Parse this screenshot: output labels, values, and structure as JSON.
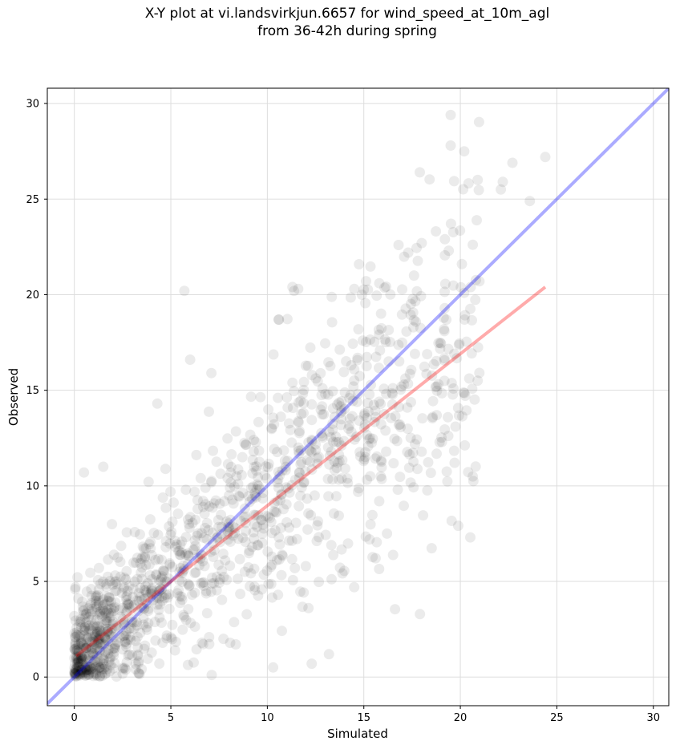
{
  "chart_data": {
    "type": "scatter",
    "title_line1": "X-Y plot at vi.landsvirkjun.6657 for wind_speed_at_10m_agl",
    "title_line2": "from 36-42h during spring",
    "xlabel": "Simulated",
    "ylabel": "Observed",
    "xlim": [
      -1.4,
      30.8
    ],
    "ylim": [
      -1.5,
      30.8
    ],
    "xticks": [
      0,
      5,
      10,
      15,
      20,
      25,
      30
    ],
    "yticks": [
      0,
      5,
      10,
      15,
      20,
      25,
      30
    ],
    "grid": true,
    "colors": {
      "points": "#000000",
      "identity_line": "#0000ff",
      "fit_line": "#ff0000"
    },
    "identity_line": {
      "name": "",
      "x": [
        -1.4,
        30.8
      ],
      "y": [
        -1.4,
        30.8
      ]
    },
    "fit_line": {
      "name": "",
      "x": [
        0.1,
        24.4
      ],
      "y": [
        1.1,
        20.4
      ]
    },
    "highlighted_points": [
      {
        "x": 19.5,
        "y": 29.4
      },
      {
        "x": 19.5,
        "y": 27.8
      },
      {
        "x": 20.2,
        "y": 27.5
      },
      {
        "x": 24.4,
        "y": 27.2
      },
      {
        "x": 22.7,
        "y": 26.9
      },
      {
        "x": 17.9,
        "y": 26.4
      },
      {
        "x": 20.9,
        "y": 26.0
      },
      {
        "x": 22.2,
        "y": 25.9
      },
      {
        "x": 22.1,
        "y": 25.5
      },
      {
        "x": 23.6,
        "y": 24.9
      },
      {
        "x": 19.2,
        "y": 22.9
      },
      {
        "x": 16.8,
        "y": 22.6
      },
      {
        "x": 18.0,
        "y": 22.7
      },
      {
        "x": 19.4,
        "y": 22.3
      },
      {
        "x": 17.3,
        "y": 22.2
      },
      {
        "x": 17.6,
        "y": 21.0
      },
      {
        "x": 15.8,
        "y": 20.6
      },
      {
        "x": 11.3,
        "y": 20.4
      },
      {
        "x": 5.7,
        "y": 20.2
      },
      {
        "x": 11.6,
        "y": 20.3
      },
      {
        "x": 14.9,
        "y": 20.0
      },
      {
        "x": 20.9,
        "y": 15.5
      },
      {
        "x": 16.2,
        "y": 7.5
      },
      {
        "x": 15.3,
        "y": 7.2
      },
      {
        "x": 14.5,
        "y": 4.7
      },
      {
        "x": 12.3,
        "y": 0.7
      },
      {
        "x": 10.3,
        "y": 0.5
      },
      {
        "x": 6.0,
        "y": 16.6
      },
      {
        "x": 7.1,
        "y": 15.9
      },
      {
        "x": 10.6,
        "y": 18.7
      },
      {
        "x": 4.3,
        "y": 14.3
      },
      {
        "x": 0.5,
        "y": 10.7
      },
      {
        "x": 1.5,
        "y": 11.0
      }
    ],
    "cloud": {
      "n_points": 1300,
      "x_range": [
        0,
        21
      ],
      "slope": 0.82,
      "intercept": 1.1,
      "spread": 2.6
    }
  }
}
